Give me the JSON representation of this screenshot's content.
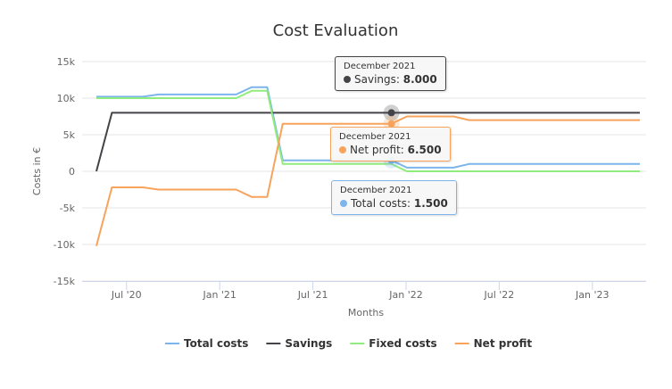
{
  "chart_data": {
    "type": "line",
    "title": "Cost Evaluation",
    "xlabel": "Months",
    "ylabel": "Costs in €",
    "ylim": [
      -15000,
      15000
    ],
    "y_ticks": [
      "15k",
      "10k",
      "5k",
      "0",
      "-5k",
      "-10k",
      "-15k"
    ],
    "y_tick_values": [
      15000,
      10000,
      5000,
      0,
      -5000,
      -10000,
      -15000
    ],
    "x_ticks": [
      "Jul '20",
      "Jan '21",
      "Jul '21",
      "Jan '22",
      "Jul '22",
      "Jan '23"
    ],
    "x_tick_months": [
      2,
      8,
      14,
      20,
      26,
      32
    ],
    "x": [
      "2020-05",
      "2020-06",
      "2020-07",
      "2020-08",
      "2020-09",
      "2020-10",
      "2020-11",
      "2020-12",
      "2021-01",
      "2021-02",
      "2021-03",
      "2021-04",
      "2021-05",
      "2021-06",
      "2021-07",
      "2021-08",
      "2021-09",
      "2021-10",
      "2021-11",
      "2021-12",
      "2022-01",
      "2022-02",
      "2022-03",
      "2022-04",
      "2022-05",
      "2022-06",
      "2022-07",
      "2022-08",
      "2022-09",
      "2022-10",
      "2022-11",
      "2022-12",
      "2023-01",
      "2023-02",
      "2023-03",
      "2023-04"
    ],
    "grid": true,
    "legend": "bottom",
    "series": [
      {
        "name": "Total costs",
        "color": "#7cb5ec",
        "values": [
          10200,
          10200,
          10200,
          10200,
          10500,
          10500,
          10500,
          10500,
          10500,
          10500,
          11500,
          11500,
          1500,
          1500,
          1500,
          1500,
          1500,
          1500,
          1500,
          1500,
          500,
          500,
          500,
          500,
          1000,
          1000,
          1000,
          1000,
          1000,
          1000,
          1000,
          1000,
          1000,
          1000,
          1000,
          1000
        ]
      },
      {
        "name": "Savings",
        "color": "#434348",
        "values": [
          0,
          8000,
          8000,
          8000,
          8000,
          8000,
          8000,
          8000,
          8000,
          8000,
          8000,
          8000,
          8000,
          8000,
          8000,
          8000,
          8000,
          8000,
          8000,
          8000,
          8000,
          8000,
          8000,
          8000,
          8000,
          8000,
          8000,
          8000,
          8000,
          8000,
          8000,
          8000,
          8000,
          8000,
          8000,
          8000
        ]
      },
      {
        "name": "Fixed costs",
        "color": "#90ed7d",
        "values": [
          10000,
          10000,
          10000,
          10000,
          10000,
          10000,
          10000,
          10000,
          10000,
          10000,
          11000,
          11000,
          1000,
          1000,
          1000,
          1000,
          1000,
          1000,
          1000,
          1000,
          0,
          0,
          0,
          0,
          0,
          0,
          0,
          0,
          0,
          0,
          0,
          0,
          0,
          0,
          0,
          0
        ]
      },
      {
        "name": "Net profit",
        "color": "#f7a35c",
        "values": [
          -10200,
          -2200,
          -2200,
          -2200,
          -2500,
          -2500,
          -2500,
          -2500,
          -2500,
          -2500,
          -3500,
          -3500,
          6500,
          6500,
          6500,
          6500,
          6500,
          6500,
          6500,
          6500,
          7500,
          7500,
          7500,
          7500,
          7000,
          7000,
          7000,
          7000,
          7000,
          7000,
          7000,
          7000,
          7000,
          7000,
          7000,
          7000
        ]
      }
    ]
  },
  "tooltips": [
    {
      "date": "December 2021",
      "series": "Savings",
      "value": "8.000",
      "color": "#434348"
    },
    {
      "date": "December 2021",
      "series": "Net profit",
      "value": "6.500",
      "color": "#f7a35c"
    },
    {
      "date": "December 2021",
      "series": "Total costs",
      "value": "1.500",
      "color": "#7cb5ec"
    }
  ]
}
